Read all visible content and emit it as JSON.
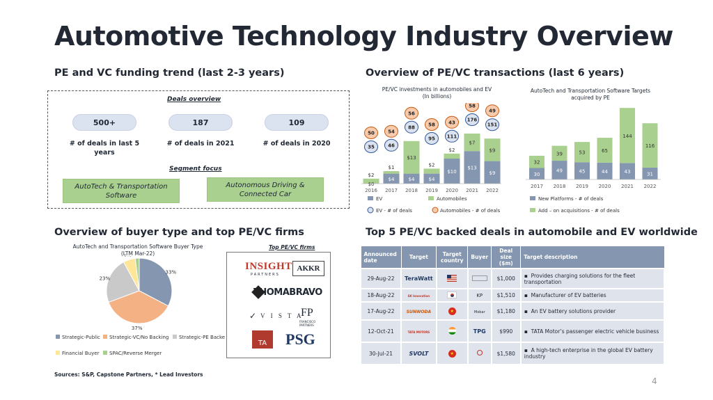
{
  "title": "Automotive Technology Industry Overview",
  "sections": {
    "funding": "PE and VC funding trend (last 2-3 years)",
    "transactions": "Overview of PE/VC transactions (last 6 years)",
    "buyer": "Overview of buyer type and top PE/VC firms",
    "top5": "Top 5 PE/VC backed deals in automobile and EV worldwide"
  },
  "deals_overview": {
    "heading": "Deals overview",
    "items": [
      {
        "value": "500+",
        "caption": "# of deals in last 5 years"
      },
      {
        "value": "187",
        "caption": "# of deals in 2021"
      },
      {
        "value": "109",
        "caption": "# of deals in 2020"
      }
    ],
    "segment_heading": "Segment focus",
    "segments": [
      "AutoTech & Transportation Software",
      "Autonomous Driving & Connected Car"
    ]
  },
  "chart_data": [
    {
      "type": "bar",
      "title": "PE/VC investments in automobiles and EV",
      "subtitle": "(In billions)",
      "categories": [
        "2016",
        "2017",
        "2018",
        "2019",
        "2020",
        "2021",
        "2022"
      ],
      "series": [
        {
          "name": "EV",
          "values": [
            0,
            4,
            4,
            4,
            10,
            13,
            9
          ],
          "labels": [
            "$0",
            "$4",
            "$4",
            "$4",
            "$10",
            "$13",
            "$9"
          ],
          "color": "#8496b0"
        },
        {
          "name": "Automobiles",
          "values": [
            2,
            1,
            13,
            2,
            2,
            7,
            9
          ],
          "labels": [
            "$2",
            "$1",
            "$13",
            "$2",
            "$2",
            "$7",
            "$9"
          ],
          "color": "#a9d08e"
        }
      ],
      "deal_counts": {
        "ev_label": "EV - # of deals",
        "auto_label": "Automobiles - # of deals",
        "ev": [
          35,
          46,
          88,
          95,
          111,
          176,
          151
        ],
        "automobiles": [
          50,
          54,
          56,
          58,
          43,
          58,
          49
        ]
      }
    },
    {
      "type": "bar",
      "title": "AutoTech and Transportation Software Targets acquired by PE",
      "categories": [
        "2017",
        "2018",
        "2019",
        "2020",
        "2021",
        "2022"
      ],
      "series": [
        {
          "name": "New Platforms - # of deals",
          "values": [
            30,
            49,
            45,
            44,
            43,
            31
          ],
          "color": "#8496b0"
        },
        {
          "name": "Add – on acquisitions - # of deals",
          "values": [
            32,
            39,
            53,
            65,
            144,
            116
          ],
          "color": "#a9d08e"
        }
      ]
    },
    {
      "type": "pie",
      "title": "AutoTech and Transportation Software Buyer Type",
      "subtitle": "(LTM Mar-22)",
      "slices": [
        {
          "name": "Strategic-Public",
          "value": 33,
          "label": "33%",
          "color": "#8496b0"
        },
        {
          "name": "Strategic-VC/No Backing",
          "value": 37,
          "label": "37%",
          "color": "#f4b183"
        },
        {
          "name": "Strategic-PE Backed",
          "value": 23,
          "label": "23%",
          "color": "#c9c9c9"
        },
        {
          "name": "Financial Buyer",
          "value": 6,
          "label": "6%",
          "color": "#ffe699"
        },
        {
          "name": "SPAC/Reverse Merger",
          "value": 2,
          "label": "2%",
          "color": "#a9d08e"
        }
      ]
    }
  ],
  "firms": {
    "heading": "Top PE/VC firms",
    "logos": [
      "INSIGHT",
      "PARTNERS",
      "AKKR",
      "THOMABRAVO",
      "VISTA",
      "FP",
      "FRANCISCO PARTNERS",
      "TA",
      "PSG"
    ]
  },
  "deals_table": {
    "headers": [
      "Announced date",
      "Target",
      "Target country",
      "Buyer",
      "Deal size ($m)",
      "Target description"
    ],
    "rows": [
      {
        "date": "29-Aug-22",
        "target": "TeraWatt",
        "size": "$1,000",
        "desc": "Provides charging solutions for the fleet transportation"
      },
      {
        "date": "18-Aug-22",
        "target": "SK Innovation",
        "size": "$1,510",
        "desc": "Manufacturer of EV batteries"
      },
      {
        "date": "17-Aug-22",
        "target": "SUNWODA",
        "size": "$1,180",
        "desc": "An EV battery solutions provider"
      },
      {
        "date": "12-Oct-21",
        "target": "TATA MOTORS",
        "size": "$990",
        "desc": "TATA Motor’s passenger electric vehicle business"
      },
      {
        "date": "30-Jul-21",
        "target": "SVOLT",
        "size": "$1,580",
        "desc": "A high-tech enterprise in the global EV battery industry"
      }
    ]
  },
  "footer": {
    "sources": "Sources: S&P, Capstone Partners, * Lead Investors",
    "page": "4"
  }
}
